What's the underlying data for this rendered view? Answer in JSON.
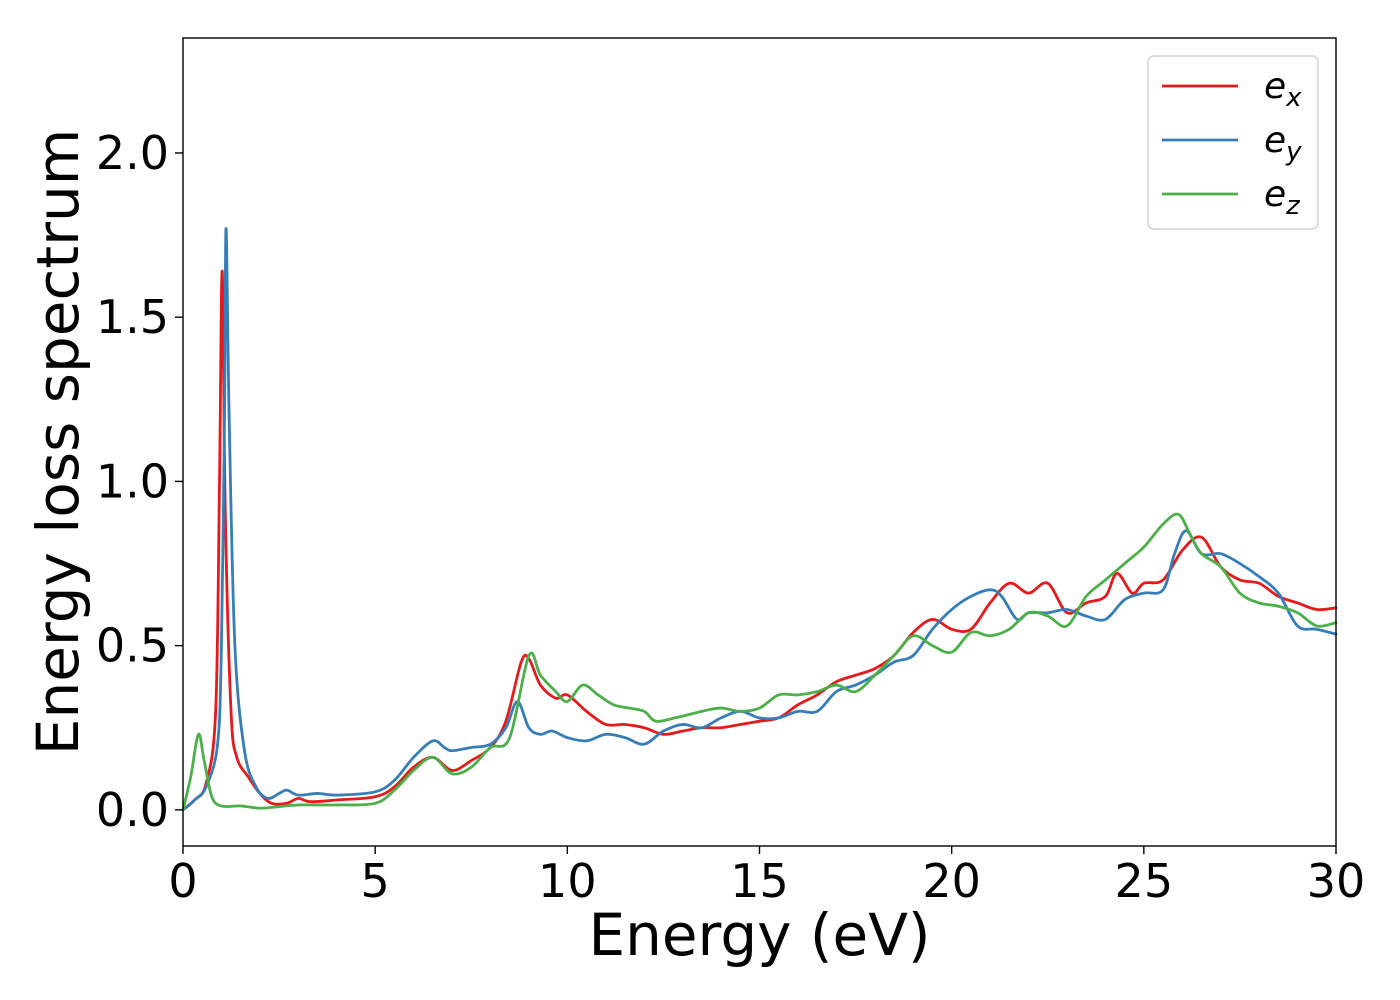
{
  "chart_data": {
    "type": "line",
    "xlabel": "Energy (eV)",
    "ylabel": "Energy loss spectrum",
    "xlim": [
      0,
      30
    ],
    "ylim": [
      -0.11,
      2.35
    ],
    "xticks": [
      "0",
      "5",
      "10",
      "15",
      "20",
      "25",
      "30"
    ],
    "yticks": [
      "0.0",
      "0.5",
      "1.0",
      "1.5",
      "2.0"
    ],
    "grid": false,
    "legend_position": "top-right",
    "series": [
      {
        "name": "e_x",
        "label_base": "e",
        "label_sub": "x",
        "color": "#e41a1c",
        "points": [
          [
            0.0,
            0.0
          ],
          [
            0.3,
            0.03
          ],
          [
            0.6,
            0.08
          ],
          [
            0.85,
            0.3
          ],
          [
            0.95,
            1.0
          ],
          [
            1.02,
            1.64
          ],
          [
            1.1,
            0.9
          ],
          [
            1.25,
            0.3
          ],
          [
            1.4,
            0.16
          ],
          [
            1.7,
            0.1
          ],
          [
            2.0,
            0.05
          ],
          [
            2.3,
            0.02
          ],
          [
            2.7,
            0.02
          ],
          [
            3.0,
            0.035
          ],
          [
            3.3,
            0.025
          ],
          [
            4.0,
            0.03
          ],
          [
            5.0,
            0.04
          ],
          [
            5.5,
            0.07
          ],
          [
            6.0,
            0.13
          ],
          [
            6.5,
            0.16
          ],
          [
            7.0,
            0.12
          ],
          [
            7.5,
            0.15
          ],
          [
            8.0,
            0.19
          ],
          [
            8.4,
            0.27
          ],
          [
            8.8,
            0.45
          ],
          [
            9.0,
            0.46
          ],
          [
            9.3,
            0.38
          ],
          [
            9.7,
            0.34
          ],
          [
            10.0,
            0.35
          ],
          [
            10.5,
            0.3
          ],
          [
            11.0,
            0.26
          ],
          [
            11.5,
            0.26
          ],
          [
            12.0,
            0.25
          ],
          [
            12.5,
            0.23
          ],
          [
            13.0,
            0.24
          ],
          [
            13.5,
            0.25
          ],
          [
            14.0,
            0.25
          ],
          [
            14.5,
            0.26
          ],
          [
            15.0,
            0.27
          ],
          [
            15.5,
            0.28
          ],
          [
            16.0,
            0.32
          ],
          [
            16.5,
            0.35
          ],
          [
            17.0,
            0.39
          ],
          [
            17.5,
            0.41
          ],
          [
            18.0,
            0.43
          ],
          [
            18.5,
            0.47
          ],
          [
            19.0,
            0.54
          ],
          [
            19.5,
            0.58
          ],
          [
            20.0,
            0.55
          ],
          [
            20.5,
            0.55
          ],
          [
            21.0,
            0.63
          ],
          [
            21.5,
            0.69
          ],
          [
            22.0,
            0.66
          ],
          [
            22.5,
            0.69
          ],
          [
            23.0,
            0.6
          ],
          [
            23.5,
            0.63
          ],
          [
            24.0,
            0.65
          ],
          [
            24.3,
            0.72
          ],
          [
            24.7,
            0.66
          ],
          [
            25.0,
            0.69
          ],
          [
            25.5,
            0.7
          ],
          [
            26.0,
            0.79
          ],
          [
            26.5,
            0.83
          ],
          [
            27.0,
            0.74
          ],
          [
            27.5,
            0.7
          ],
          [
            28.0,
            0.69
          ],
          [
            28.5,
            0.65
          ],
          [
            29.0,
            0.63
          ],
          [
            29.5,
            0.61
          ],
          [
            30.0,
            0.615
          ]
        ]
      },
      {
        "name": "e_y",
        "label_base": "e",
        "label_sub": "y",
        "color": "#377eb8",
        "points": [
          [
            0.0,
            0.0
          ],
          [
            0.3,
            0.03
          ],
          [
            0.6,
            0.07
          ],
          [
            0.9,
            0.2
          ],
          [
            1.0,
            0.5
          ],
          [
            1.08,
            1.2
          ],
          [
            1.12,
            1.77
          ],
          [
            1.2,
            1.2
          ],
          [
            1.35,
            0.5
          ],
          [
            1.6,
            0.18
          ],
          [
            1.9,
            0.07
          ],
          [
            2.2,
            0.035
          ],
          [
            2.5,
            0.05
          ],
          [
            2.7,
            0.06
          ],
          [
            3.0,
            0.045
          ],
          [
            3.5,
            0.05
          ],
          [
            4.0,
            0.045
          ],
          [
            5.0,
            0.055
          ],
          [
            5.5,
            0.09
          ],
          [
            6.0,
            0.16
          ],
          [
            6.5,
            0.21
          ],
          [
            6.8,
            0.19
          ],
          [
            7.0,
            0.18
          ],
          [
            7.5,
            0.19
          ],
          [
            8.0,
            0.2
          ],
          [
            8.4,
            0.25
          ],
          [
            8.7,
            0.33
          ],
          [
            9.0,
            0.25
          ],
          [
            9.3,
            0.23
          ],
          [
            9.6,
            0.24
          ],
          [
            10.0,
            0.22
          ],
          [
            10.5,
            0.21
          ],
          [
            11.0,
            0.23
          ],
          [
            11.5,
            0.22
          ],
          [
            12.0,
            0.2
          ],
          [
            12.5,
            0.24
          ],
          [
            13.0,
            0.26
          ],
          [
            13.5,
            0.25
          ],
          [
            14.0,
            0.28
          ],
          [
            14.5,
            0.3
          ],
          [
            15.0,
            0.28
          ],
          [
            15.5,
            0.28
          ],
          [
            16.0,
            0.3
          ],
          [
            16.5,
            0.3
          ],
          [
            17.0,
            0.36
          ],
          [
            17.5,
            0.38
          ],
          [
            18.0,
            0.41
          ],
          [
            18.5,
            0.45
          ],
          [
            19.0,
            0.47
          ],
          [
            19.5,
            0.55
          ],
          [
            20.0,
            0.61
          ],
          [
            20.5,
            0.65
          ],
          [
            21.0,
            0.67
          ],
          [
            21.3,
            0.65
          ],
          [
            21.7,
            0.58
          ],
          [
            22.0,
            0.6
          ],
          [
            22.5,
            0.6
          ],
          [
            23.0,
            0.61
          ],
          [
            23.5,
            0.59
          ],
          [
            24.0,
            0.58
          ],
          [
            24.5,
            0.64
          ],
          [
            25.0,
            0.66
          ],
          [
            25.5,
            0.67
          ],
          [
            25.8,
            0.78
          ],
          [
            26.1,
            0.85
          ],
          [
            26.5,
            0.78
          ],
          [
            27.0,
            0.78
          ],
          [
            27.5,
            0.75
          ],
          [
            28.0,
            0.71
          ],
          [
            28.5,
            0.66
          ],
          [
            29.0,
            0.56
          ],
          [
            29.5,
            0.55
          ],
          [
            30.0,
            0.535
          ]
        ]
      },
      {
        "name": "e_z",
        "label_base": "e",
        "label_sub": "z",
        "color": "#4daf4a",
        "points": [
          [
            0.0,
            0.0
          ],
          [
            0.2,
            0.1
          ],
          [
            0.4,
            0.23
          ],
          [
            0.55,
            0.15
          ],
          [
            0.75,
            0.04
          ],
          [
            1.0,
            0.012
          ],
          [
            1.5,
            0.012
          ],
          [
            2.0,
            0.005
          ],
          [
            2.5,
            0.01
          ],
          [
            3.0,
            0.015
          ],
          [
            4.0,
            0.015
          ],
          [
            5.0,
            0.02
          ],
          [
            5.5,
            0.06
          ],
          [
            6.0,
            0.12
          ],
          [
            6.5,
            0.16
          ],
          [
            7.0,
            0.11
          ],
          [
            7.5,
            0.13
          ],
          [
            8.0,
            0.19
          ],
          [
            8.5,
            0.22
          ],
          [
            9.0,
            0.47
          ],
          [
            9.3,
            0.41
          ],
          [
            9.7,
            0.36
          ],
          [
            10.0,
            0.33
          ],
          [
            10.4,
            0.38
          ],
          [
            10.8,
            0.35
          ],
          [
            11.2,
            0.32
          ],
          [
            11.6,
            0.31
          ],
          [
            12.0,
            0.3
          ],
          [
            12.3,
            0.27
          ],
          [
            12.8,
            0.28
          ],
          [
            13.5,
            0.3
          ],
          [
            14.0,
            0.31
          ],
          [
            14.5,
            0.3
          ],
          [
            15.0,
            0.31
          ],
          [
            15.5,
            0.35
          ],
          [
            16.0,
            0.35
          ],
          [
            16.5,
            0.36
          ],
          [
            17.0,
            0.38
          ],
          [
            17.5,
            0.36
          ],
          [
            18.0,
            0.41
          ],
          [
            18.5,
            0.47
          ],
          [
            19.0,
            0.53
          ],
          [
            19.5,
            0.5
          ],
          [
            20.0,
            0.48
          ],
          [
            20.5,
            0.54
          ],
          [
            21.0,
            0.53
          ],
          [
            21.5,
            0.55
          ],
          [
            22.0,
            0.6
          ],
          [
            22.5,
            0.59
          ],
          [
            23.0,
            0.56
          ],
          [
            23.5,
            0.65
          ],
          [
            24.0,
            0.7
          ],
          [
            24.5,
            0.75
          ],
          [
            25.0,
            0.8
          ],
          [
            25.5,
            0.87
          ],
          [
            25.9,
            0.9
          ],
          [
            26.2,
            0.84
          ],
          [
            26.5,
            0.78
          ],
          [
            27.0,
            0.74
          ],
          [
            27.5,
            0.66
          ],
          [
            28.0,
            0.63
          ],
          [
            28.5,
            0.62
          ],
          [
            29.0,
            0.6
          ],
          [
            29.5,
            0.56
          ],
          [
            30.0,
            0.57
          ]
        ]
      }
    ]
  }
}
